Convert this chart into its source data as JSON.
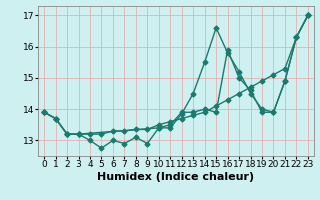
{
  "title": "",
  "xlabel": "Humidex (Indice chaleur)",
  "bg_color": "#cff0f0",
  "grid_color": "#e8b0b0",
  "line_color": "#1a7a6e",
  "xlim": [
    -0.5,
    23.5
  ],
  "ylim": [
    12.5,
    17.3
  ],
  "yticks": [
    13,
    14,
    15,
    16,
    17
  ],
  "xticks": [
    0,
    1,
    2,
    3,
    4,
    5,
    6,
    7,
    8,
    9,
    10,
    11,
    12,
    13,
    14,
    15,
    16,
    17,
    18,
    19,
    20,
    21,
    22,
    23
  ],
  "lines": [
    {
      "x": [
        0,
        1,
        2,
        3,
        4,
        5,
        6,
        7,
        8,
        9,
        10,
        11,
        12,
        13,
        14,
        15,
        16,
        17,
        18,
        19,
        20,
        21,
        22,
        23
      ],
      "y": [
        13.9,
        13.7,
        13.2,
        13.2,
        13.0,
        12.75,
        13.0,
        12.9,
        13.1,
        12.9,
        13.4,
        13.5,
        13.9,
        13.9,
        14.0,
        13.9,
        15.9,
        15.0,
        14.6,
        13.9,
        13.9,
        14.9,
        16.3,
        17.0
      ]
    },
    {
      "x": [
        0,
        1,
        2,
        3,
        4,
        5,
        6,
        7,
        8,
        9,
        10,
        11,
        12,
        13,
        14,
        15,
        16,
        17,
        18,
        19,
        20,
        21,
        22,
        23
      ],
      "y": [
        13.9,
        13.7,
        13.2,
        13.2,
        13.2,
        13.2,
        13.3,
        13.3,
        13.35,
        13.35,
        13.5,
        13.6,
        13.7,
        13.8,
        13.9,
        14.1,
        14.3,
        14.5,
        14.7,
        14.9,
        15.1,
        15.3,
        16.3,
        17.0
      ]
    },
    {
      "x": [
        0,
        1,
        2,
        3,
        10,
        11,
        12,
        13,
        14,
        15,
        16,
        17,
        18,
        19,
        20,
        21,
        22,
        23
      ],
      "y": [
        13.9,
        13.7,
        13.2,
        13.2,
        13.4,
        13.4,
        13.85,
        14.5,
        15.5,
        16.6,
        15.8,
        15.2,
        14.5,
        14.0,
        13.9,
        14.9,
        16.3,
        17.0
      ]
    }
  ],
  "marker": "D",
  "marker_size": 2.5,
  "linewidth": 1.0,
  "xlabel_fontsize": 8,
  "tick_fontsize": 6.5
}
